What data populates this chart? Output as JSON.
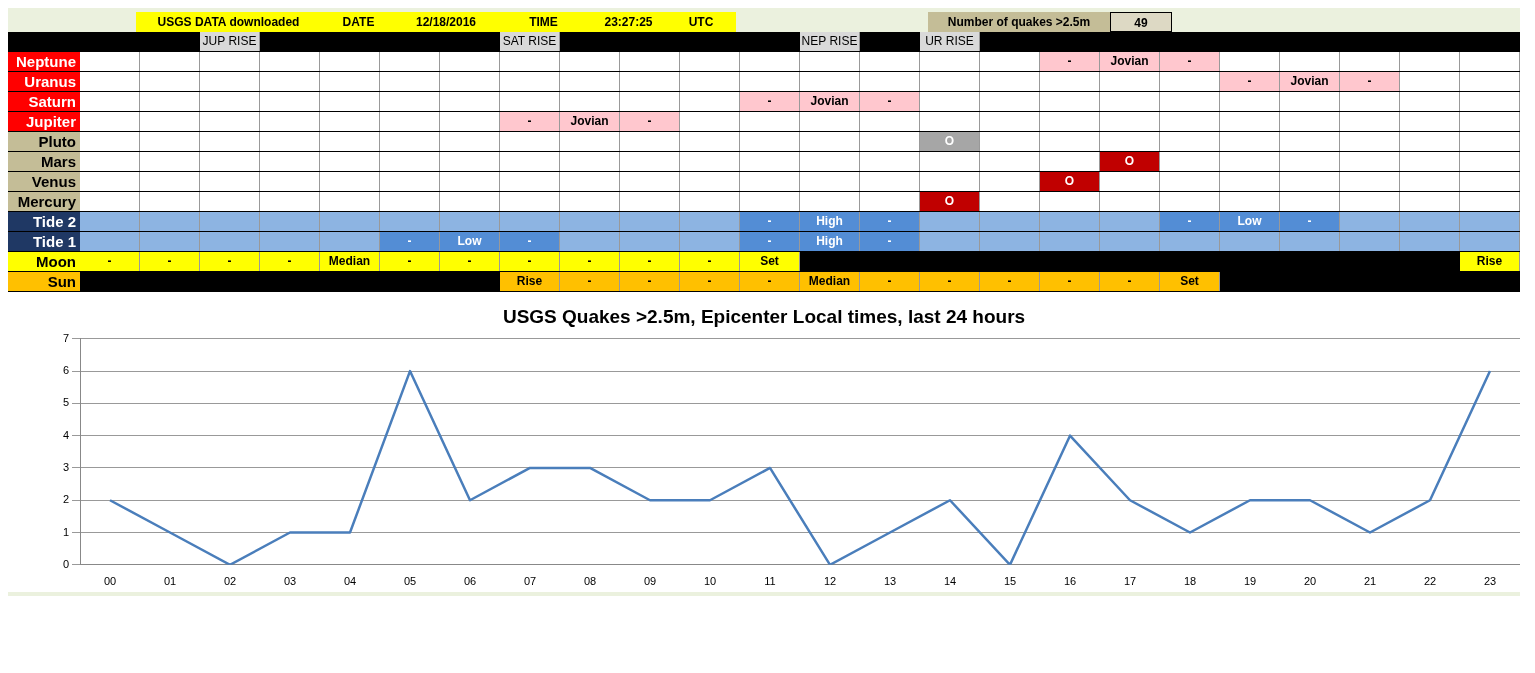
{
  "chart_data": [
    {
      "type": "other",
      "annotations": [
        "USGS DATA downloaded",
        "DATE",
        "12/18/2016",
        "TIME",
        "23:27:25",
        "UTC",
        "Number of quakes >2.5m",
        "49"
      ],
      "y_categories": [
        null,
        "Neptune",
        "Uranus",
        "Saturn",
        "Jupiter",
        "Pluto",
        "Mars",
        "Venus",
        "Mercury",
        "Tide 2",
        "Tide 1",
        "Moon",
        "Sun"
      ],
      "cell_labels": [
        [
          null,
          null,
          "JUP RISE",
          null,
          null,
          null,
          null,
          "SAT RISE",
          null,
          null,
          null,
          null,
          "NEP RISE",
          null,
          "UR RISE",
          null,
          null,
          null,
          null,
          null,
          null,
          null,
          null,
          null
        ],
        [
          null,
          null,
          null,
          null,
          null,
          null,
          null,
          null,
          null,
          null,
          null,
          null,
          null,
          null,
          null,
          null,
          "-",
          "Jovian",
          "-",
          null,
          null,
          null,
          null,
          null
        ],
        [
          null,
          null,
          null,
          null,
          null,
          null,
          null,
          null,
          null,
          null,
          null,
          null,
          null,
          null,
          null,
          null,
          null,
          null,
          null,
          "-",
          "Jovian",
          "-",
          null,
          null
        ],
        [
          null,
          null,
          null,
          null,
          null,
          null,
          null,
          null,
          null,
          null,
          null,
          "-",
          "Jovian",
          "-",
          null,
          null,
          null,
          null,
          null,
          null,
          null,
          null,
          null,
          null
        ],
        [
          null,
          null,
          null,
          null,
          null,
          null,
          null,
          "-",
          "Jovian",
          "-",
          null,
          null,
          null,
          null,
          null,
          null,
          null,
          null,
          null,
          null,
          null,
          null,
          null,
          null
        ],
        [
          null,
          null,
          null,
          null,
          null,
          null,
          null,
          null,
          null,
          null,
          null,
          null,
          null,
          null,
          "O",
          null,
          null,
          null,
          null,
          null,
          null,
          null,
          null,
          null
        ],
        [
          null,
          null,
          null,
          null,
          null,
          null,
          null,
          null,
          null,
          null,
          null,
          null,
          null,
          null,
          null,
          null,
          null,
          "O",
          null,
          null,
          null,
          null,
          null,
          null
        ],
        [
          null,
          null,
          null,
          null,
          null,
          null,
          null,
          null,
          null,
          null,
          null,
          null,
          null,
          null,
          null,
          null,
          "O",
          null,
          null,
          null,
          null,
          null,
          null,
          null
        ],
        [
          null,
          null,
          null,
          null,
          null,
          null,
          null,
          null,
          null,
          null,
          null,
          null,
          null,
          null,
          "O",
          null,
          null,
          null,
          null,
          null,
          null,
          null,
          null,
          null
        ],
        [
          null,
          null,
          null,
          null,
          null,
          null,
          null,
          null,
          null,
          null,
          null,
          "-",
          "High",
          "-",
          null,
          null,
          null,
          null,
          "-",
          "Low",
          "-",
          null,
          null,
          null
        ],
        [
          null,
          null,
          null,
          null,
          null,
          "-",
          "Low",
          "-",
          null,
          null,
          null,
          "-",
          "High",
          "-",
          null,
          null,
          null,
          null,
          null,
          null,
          null,
          null,
          null,
          null
        ],
        [
          "-",
          "-",
          "-",
          "-",
          "Median",
          "-",
          "-",
          "-",
          "-",
          "-",
          "-",
          "Set",
          null,
          null,
          null,
          null,
          null,
          null,
          null,
          null,
          null,
          null,
          null,
          "Rise"
        ],
        [
          null,
          null,
          null,
          null,
          null,
          null,
          null,
          "Rise",
          "-",
          "-",
          "-",
          "-",
          "Median",
          "-",
          "-",
          "-",
          "-",
          "-",
          "Set",
          null,
          null,
          null,
          null,
          null
        ]
      ]
    },
    {
      "type": "line",
      "title": "USGS Quakes >2.5m, Epicenter Local times, last 24 hours",
      "categories": [
        "00",
        "01",
        "02",
        "03",
        "04",
        "05",
        "06",
        "07",
        "08",
        "09",
        "10",
        "11",
        "12",
        "13",
        "14",
        "15",
        "16",
        "17",
        "18",
        "19",
        "20",
        "21",
        "22",
        "23"
      ],
      "values": [
        2,
        1,
        0,
        1,
        1,
        6,
        2,
        3,
        3,
        2,
        2,
        3,
        0,
        1,
        2,
        0,
        4,
        2,
        1,
        2,
        2,
        1,
        2,
        6
      ],
      "color": "#4a7ebb",
      "ylim": [
        0,
        7
      ],
      "yticks": [
        0,
        1,
        2,
        3,
        4,
        5,
        6,
        7
      ],
      "grid": "y"
    }
  ]
}
